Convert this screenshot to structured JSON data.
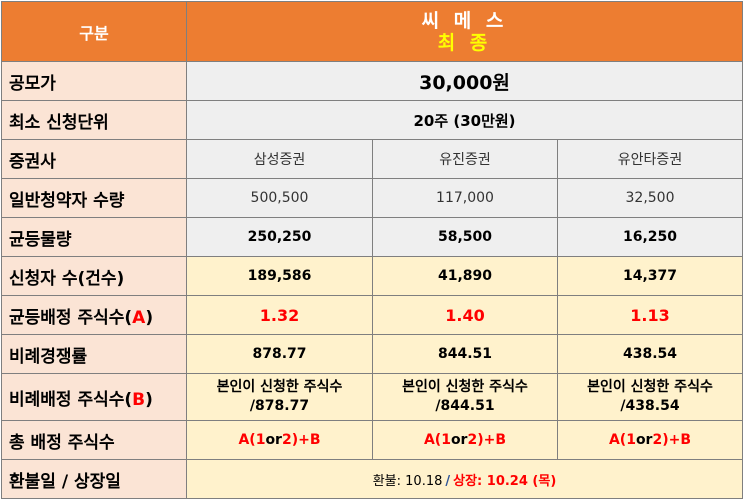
{
  "header": {
    "label": "구분",
    "company": "씨 메 스",
    "stage": "최 종"
  },
  "rows": {
    "price": {
      "label": "공모가",
      "value": "30,000원"
    },
    "min_unit": {
      "label": "최소 신청단위",
      "value": "20주 (30만원)"
    },
    "broker": {
      "label": "증권사",
      "values": [
        "삼성증권",
        "유진증권",
        "유안타증권"
      ]
    },
    "general_qty": {
      "label": "일반청약자 수량",
      "values": [
        "500,500",
        "117,000",
        "32,500"
      ]
    },
    "equal_qty": {
      "label": "균등물량",
      "values": [
        "250,250",
        "58,500",
        "16,250"
      ]
    },
    "applicants": {
      "label": "신청자 수(건수)",
      "values": [
        "189,586",
        "41,890",
        "14,377"
      ]
    },
    "equal_alloc": {
      "label_main": "균등배정 주식수(",
      "label_mark": "A",
      "label_end": ")",
      "values": [
        "1.32",
        "1.40",
        "1.13"
      ]
    },
    "prop_rate": {
      "label": "비례경쟁률",
      "values": [
        "878.77",
        "844.51",
        "438.54"
      ]
    },
    "prop_alloc": {
      "label_main": "비례배정 주식수(",
      "label_mark": "B",
      "label_end": ")",
      "values": [
        {
          "line1": "본인이 신청한 주식수",
          "line2": "/878.77"
        },
        {
          "line1": "본인이 신청한 주식수",
          "line2": "/844.51"
        },
        {
          "line1": "본인이 신청한 주식수",
          "line2": "/438.54"
        }
      ]
    },
    "total_alloc": {
      "label": "총 배정 주식수",
      "formula": {
        "a": "A(",
        "one": "1",
        "or": "or",
        "two": "2",
        "b": ")+B"
      }
    },
    "dates": {
      "label": "환불일 / 상장일",
      "refund": "환불: 10.18",
      "separator": "/",
      "listing": "상장: 10.24 (목)"
    }
  },
  "colors": {
    "header_bg": "#ed7d31",
    "label_bg": "#fbe4d5",
    "cream_bg": "#fff2cc",
    "gray_bg": "#efefef",
    "accent_red": "#ff0000",
    "stage_yellow": "#ffff00"
  }
}
